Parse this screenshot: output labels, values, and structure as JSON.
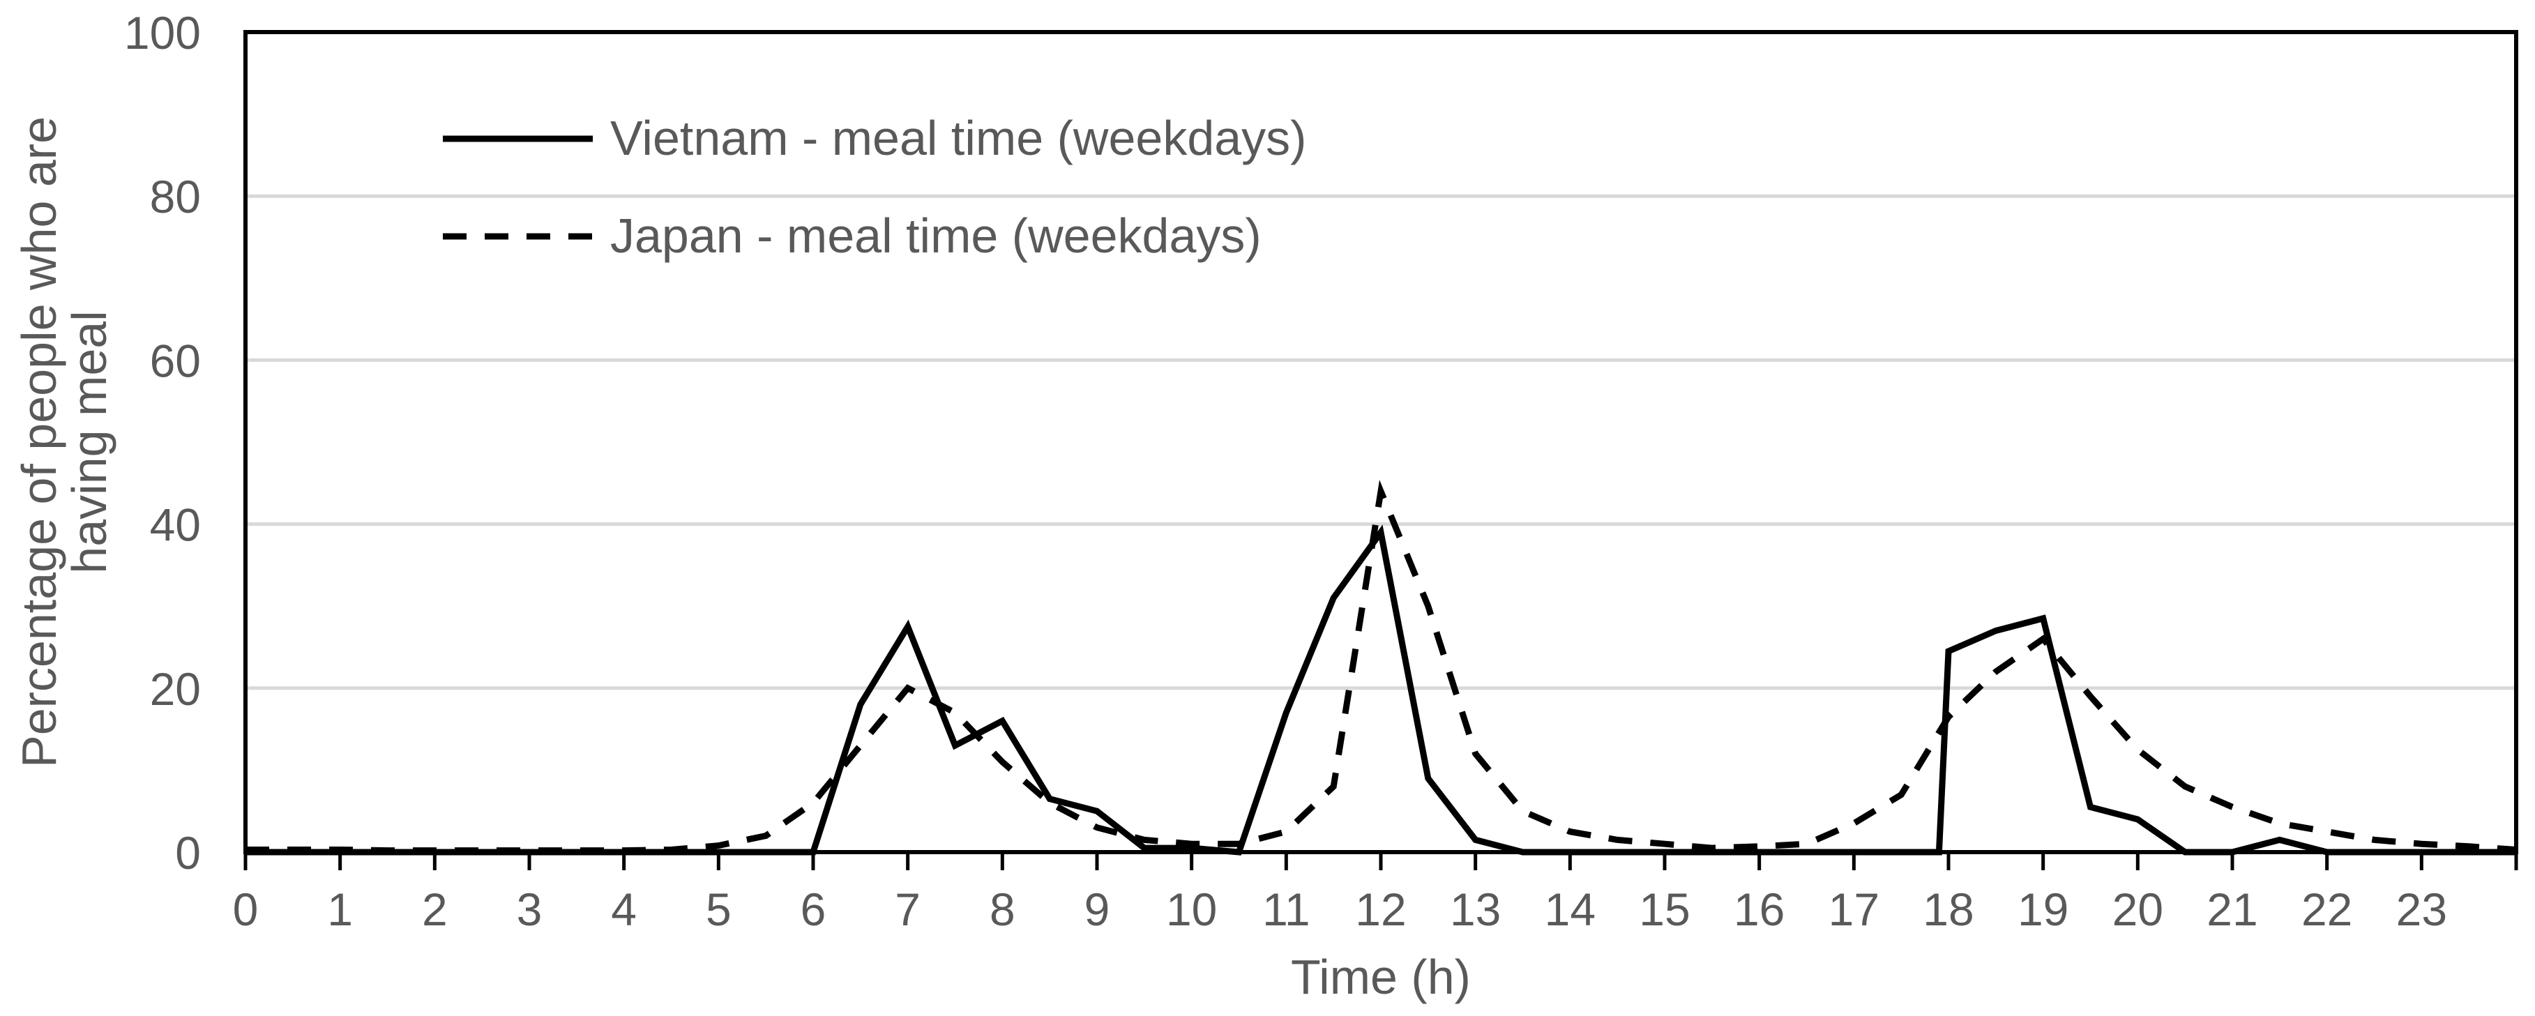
{
  "chart_data": {
    "type": "line",
    "title": "",
    "xlabel": "Time (h)",
    "ylabel_lines": [
      "Percentage of people who are",
      "having meal"
    ],
    "xlim": [
      0,
      24
    ],
    "ylim": [
      0,
      100
    ],
    "xticks": [
      "0",
      "1",
      "2",
      "3",
      "4",
      "5",
      "6",
      "7",
      "8",
      "9",
      "10",
      "11",
      "12",
      "13",
      "14",
      "15",
      "16",
      "17",
      "18",
      "19",
      "20",
      "21",
      "22",
      "23"
    ],
    "yticks": [
      "0",
      "20",
      "40",
      "60",
      "80",
      "100"
    ],
    "grid": "horizontal",
    "legend_position": "top-left",
    "series": [
      {
        "name": "Vietnam - meal time (weekdays)",
        "style": "solid",
        "color": "#000000",
        "points": [
          [
            0,
            0
          ],
          [
            0.5,
            0
          ],
          [
            1,
            0
          ],
          [
            1.5,
            0
          ],
          [
            2,
            0
          ],
          [
            2.5,
            0
          ],
          [
            3,
            0
          ],
          [
            3.5,
            0
          ],
          [
            4,
            0
          ],
          [
            4.5,
            0
          ],
          [
            5,
            0
          ],
          [
            5.5,
            0
          ],
          [
            6,
            0
          ],
          [
            6.5,
            18
          ],
          [
            7,
            27.5
          ],
          [
            7.5,
            13
          ],
          [
            8,
            16
          ],
          [
            8.5,
            6.5
          ],
          [
            9,
            5
          ],
          [
            9.5,
            0.5
          ],
          [
            10,
            0.5
          ],
          [
            10.5,
            0
          ],
          [
            11,
            17
          ],
          [
            11.5,
            31
          ],
          [
            12,
            39
          ],
          [
            12.5,
            9
          ],
          [
            13,
            1.5
          ],
          [
            13.5,
            0
          ],
          [
            14,
            0
          ],
          [
            14.5,
            0
          ],
          [
            15,
            0
          ],
          [
            15.5,
            0
          ],
          [
            16,
            0
          ],
          [
            16.5,
            0
          ],
          [
            17,
            0
          ],
          [
            17.5,
            0
          ],
          [
            17.9,
            0
          ],
          [
            18,
            24.5
          ],
          [
            18.5,
            27
          ],
          [
            19,
            28.5
          ],
          [
            19.5,
            5.5
          ],
          [
            20,
            4
          ],
          [
            20.5,
            0
          ],
          [
            21,
            0
          ],
          [
            21.5,
            1.5
          ],
          [
            22,
            0
          ],
          [
            22.5,
            0
          ],
          [
            23,
            0
          ],
          [
            23.5,
            0
          ],
          [
            24,
            0
          ]
        ]
      },
      {
        "name": "Japan - meal time (weekdays)",
        "style": "dashed",
        "color": "#000000",
        "points": [
          [
            0,
            0.3
          ],
          [
            0.5,
            0.3
          ],
          [
            1,
            0.3
          ],
          [
            1.5,
            0.2
          ],
          [
            2,
            0.2
          ],
          [
            2.5,
            0.2
          ],
          [
            3,
            0.2
          ],
          [
            3.5,
            0.2
          ],
          [
            4,
            0.2
          ],
          [
            4.5,
            0.3
          ],
          [
            5,
            0.8
          ],
          [
            5.5,
            2
          ],
          [
            6,
            6
          ],
          [
            6.5,
            13
          ],
          [
            7,
            20
          ],
          [
            7.5,
            17
          ],
          [
            8,
            11
          ],
          [
            8.5,
            6
          ],
          [
            9,
            3
          ],
          [
            9.5,
            1.5
          ],
          [
            10,
            1
          ],
          [
            10.5,
            1
          ],
          [
            11,
            2.5
          ],
          [
            11.5,
            8
          ],
          [
            12,
            44
          ],
          [
            12.5,
            30
          ],
          [
            13,
            12
          ],
          [
            13.5,
            5
          ],
          [
            14,
            2.5
          ],
          [
            14.5,
            1.5
          ],
          [
            15,
            1
          ],
          [
            15.5,
            0.5
          ],
          [
            16,
            0.7
          ],
          [
            16.5,
            1
          ],
          [
            17,
            3.5
          ],
          [
            17.5,
            7
          ],
          [
            18,
            16.5
          ],
          [
            18.5,
            22
          ],
          [
            19,
            26
          ],
          [
            19.5,
            19
          ],
          [
            20,
            12.5
          ],
          [
            20.5,
            8
          ],
          [
            21,
            5.5
          ],
          [
            21.5,
            3.5
          ],
          [
            22,
            2.5
          ],
          [
            22.5,
            1.5
          ],
          [
            23,
            1
          ],
          [
            23.5,
            0.7
          ],
          [
            24,
            0.3
          ]
        ]
      }
    ]
  }
}
